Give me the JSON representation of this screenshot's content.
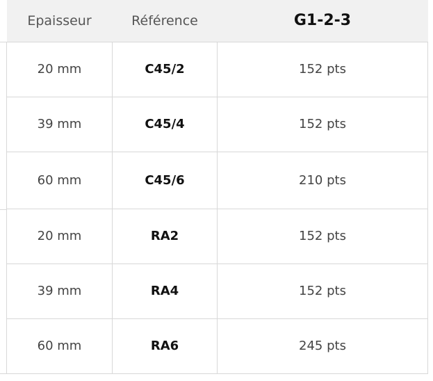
{
  "table": {
    "headers": {
      "thickness": "Epaisseur",
      "reference": "Référence",
      "group": "G1-2-3"
    },
    "rows": [
      {
        "thickness": "20 mm",
        "reference": "C45/2",
        "points": "152 pts"
      },
      {
        "thickness": "39 mm",
        "reference": "C45/4",
        "points": "152 pts"
      },
      {
        "thickness": "60 mm",
        "reference": "C45/6",
        "points": "210 pts"
      },
      {
        "thickness": "20 mm",
        "reference": "RA2",
        "points": "152 pts"
      },
      {
        "thickness": "39 mm",
        "reference": "RA4",
        "points": "152 pts"
      },
      {
        "thickness": "60 mm",
        "reference": "RA6",
        "points": "245 pts"
      }
    ]
  }
}
